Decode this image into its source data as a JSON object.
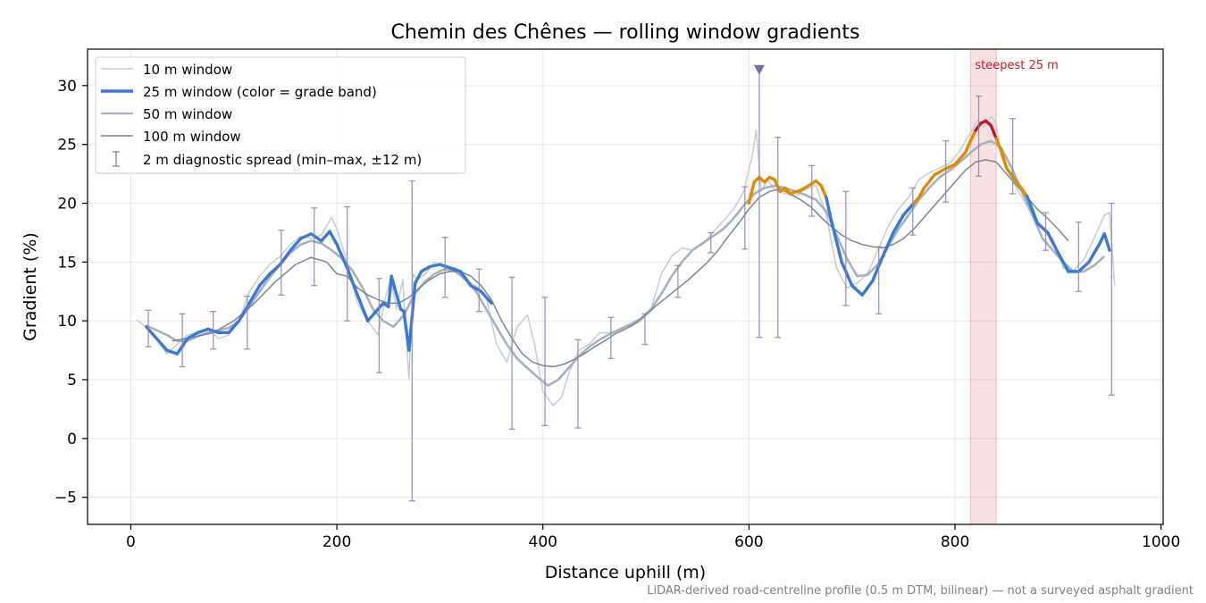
{
  "chart_data": {
    "type": "line",
    "title": "Chemin des Chênes — rolling window gradients",
    "xlabel": "Distance uphill (m)",
    "ylabel": "Gradient (%)",
    "footnote": "LiDAR-derived road-centreline profile (0.5 m DTM, bilinear) — not a surveyed asphalt gradient",
    "xlim": [
      -42,
      1002
    ],
    "ylim": [
      -7.3,
      33.1
    ],
    "xticks": [
      0,
      200,
      400,
      600,
      800,
      1000
    ],
    "yticks": [
      -5,
      0,
      5,
      10,
      15,
      20,
      25,
      30
    ],
    "ytick_labels": [
      "−5",
      "0",
      "5",
      "10",
      "15",
      "20",
      "25",
      "30"
    ],
    "grid": true,
    "legend_position": "top-left",
    "grade_band_colors": {
      "normal": "#3a78d4",
      "steep": "#e08a00",
      "very_steep": "#c0182a"
    },
    "grade_band_thresholds": [
      20,
      26
    ],
    "legend": [
      {
        "label": "10 m window",
        "color": "#c8ced6",
        "style": "thin"
      },
      {
        "label": "25 m window (color = grade band)",
        "color": "#3a78d4",
        "style": "thick"
      },
      {
        "label": "50 m window",
        "color": "#a6b0bf",
        "style": "medium"
      },
      {
        "label": "100 m window",
        "color": "#7e8492",
        "style": "thin"
      },
      {
        "label": "2 m diagnostic spread (min–max, ±12 m)",
        "color": "#8c85a8",
        "style": "errorbar"
      }
    ],
    "series": [
      {
        "name": "10 m window",
        "color": "#c8ced6",
        "x": [
          5,
          15,
          25,
          35,
          45,
          55,
          65,
          75,
          85,
          95,
          105,
          115,
          125,
          135,
          145,
          155,
          165,
          175,
          185,
          195,
          200,
          210,
          220,
          230,
          240,
          247,
          252,
          258,
          264,
          270,
          274,
          278,
          286,
          295,
          305,
          315,
          325,
          335,
          345,
          355,
          365,
          375,
          385,
          392,
          400,
          410,
          418,
          425,
          435,
          445,
          455,
          465,
          475,
          485,
          495,
          505,
          515,
          525,
          535,
          545,
          555,
          565,
          575,
          585,
          595,
          603,
          607,
          612,
          618,
          625,
          635,
          645,
          655,
          665,
          675,
          685,
          695,
          705,
          715,
          725,
          735,
          745,
          755,
          765,
          775,
          785,
          795,
          805,
          815,
          822,
          828,
          835,
          840,
          845,
          855,
          865,
          875,
          885,
          895,
          905,
          915,
          925,
          935,
          945,
          950,
          955
        ],
        "y": [
          10.1,
          9.5,
          8.5,
          7.2,
          8.0,
          8.8,
          9.0,
          9.3,
          8.5,
          8.8,
          10.0,
          12.5,
          13.8,
          14.8,
          15.5,
          16.5,
          17.2,
          17.0,
          17.3,
          18.8,
          17.8,
          15.0,
          11.5,
          10.0,
          8.8,
          12.0,
          13.5,
          11.0,
          13.5,
          5.0,
          14.0,
          13.5,
          14.0,
          15.0,
          14.5,
          14.5,
          13.5,
          13.0,
          12.0,
          8.0,
          6.5,
          9.5,
          10.5,
          8.0,
          4.0,
          2.8,
          3.5,
          5.5,
          7.5,
          8.0,
          9.0,
          9.0,
          9.2,
          9.5,
          10.0,
          11.0,
          14.0,
          15.5,
          16.2,
          16.0,
          16.5,
          17.5,
          18.5,
          19.5,
          21.0,
          24.0,
          26.2,
          21.0,
          22.0,
          21.2,
          20.8,
          20.6,
          21.2,
          21.5,
          19.0,
          14.5,
          12.8,
          13.2,
          14.0,
          16.0,
          18.0,
          19.5,
          20.5,
          22.0,
          22.6,
          23.0,
          23.4,
          24.5,
          26.0,
          27.0,
          26.5,
          27.4,
          26.8,
          24.0,
          22.0,
          20.5,
          19.0,
          17.8,
          17.0,
          14.5,
          14.3,
          15.2,
          17.0,
          19.0,
          19.2,
          13.0
        ]
      },
      {
        "name": "25 m window (color = grade band)",
        "color": "#3a78d4",
        "x": [
          15,
          25,
          35,
          45,
          55,
          65,
          75,
          85,
          95,
          105,
          115,
          125,
          135,
          145,
          155,
          165,
          175,
          185,
          193,
          200,
          210,
          220,
          230,
          240,
          245,
          250,
          253,
          257,
          262,
          265,
          270,
          276,
          282,
          290,
          300,
          310,
          320,
          330,
          340,
          350,
          600,
          605,
          610,
          615,
          620,
          625,
          630,
          635,
          640,
          650,
          660,
          665,
          670,
          675,
          680,
          690,
          700,
          710,
          720,
          730,
          740,
          750,
          760,
          765,
          770,
          780,
          790,
          800,
          810,
          815,
          820,
          825,
          830,
          835,
          840,
          845,
          850,
          860,
          870,
          880,
          890,
          900,
          910,
          920,
          930,
          940,
          945,
          950
        ],
        "y": [
          9.5,
          8.5,
          7.5,
          7.2,
          8.5,
          9.0,
          9.3,
          9.0,
          9.0,
          10.0,
          11.5,
          13.0,
          14.0,
          14.8,
          16.0,
          17.0,
          17.4,
          16.8,
          17.6,
          16.5,
          14.5,
          12.2,
          10.0,
          11.0,
          11.5,
          11.2,
          13.8,
          12.5,
          11.0,
          10.8,
          7.5,
          13.2,
          14.2,
          14.6,
          14.8,
          14.5,
          14.2,
          13.0,
          12.5,
          11.5,
          20.0,
          21.8,
          22.2,
          21.8,
          22.2,
          22.0,
          21.0,
          21.3,
          20.8,
          21.1,
          21.6,
          21.9,
          21.5,
          20.5,
          18.5,
          15.0,
          13.0,
          12.2,
          13.4,
          15.5,
          17.5,
          19.0,
          20.0,
          20.5,
          21.3,
          22.4,
          22.9,
          23.3,
          24.3,
          25.3,
          26.2,
          26.8,
          27.0,
          26.6,
          25.5,
          24.4,
          23.0,
          21.8,
          20.6,
          18.3,
          17.5,
          15.8,
          14.2,
          14.2,
          15.0,
          16.5,
          17.4,
          16.0
        ]
      },
      {
        "name": "50 m window",
        "color": "#a6b0bf",
        "x": [
          15,
          25,
          35,
          45,
          55,
          65,
          75,
          85,
          95,
          105,
          115,
          125,
          135,
          145,
          155,
          165,
          175,
          185,
          195,
          205,
          215,
          225,
          235,
          245,
          255,
          265,
          275,
          285,
          295,
          305,
          315,
          325,
          335,
          345,
          355,
          365,
          375,
          385,
          395,
          405,
          415,
          425,
          435,
          445,
          455,
          465,
          475,
          485,
          495,
          505,
          515,
          525,
          535,
          545,
          555,
          565,
          575,
          585,
          595,
          605,
          615,
          625,
          635,
          645,
          655,
          665,
          675,
          685,
          695,
          705,
          715,
          725,
          735,
          745,
          755,
          765,
          775,
          785,
          795,
          805,
          815,
          825,
          835,
          845,
          855,
          865,
          875,
          885,
          895,
          905,
          915,
          925,
          935,
          945
        ],
        "y": [
          9.6,
          9.2,
          8.8,
          8.3,
          8.3,
          8.7,
          9.0,
          9.2,
          9.4,
          10.0,
          11.2,
          12.5,
          13.7,
          14.8,
          15.8,
          16.5,
          16.8,
          16.6,
          16.0,
          15.3,
          14.3,
          12.8,
          11.0,
          10.0,
          9.5,
          10.5,
          12.2,
          13.3,
          14.0,
          14.4,
          14.2,
          13.5,
          12.5,
          11.0,
          9.5,
          8.0,
          6.8,
          6.0,
          5.2,
          4.5,
          5.0,
          6.0,
          7.0,
          7.8,
          8.4,
          8.9,
          9.3,
          9.7,
          10.2,
          11.0,
          12.3,
          13.8,
          15.0,
          16.0,
          16.6,
          17.2,
          17.8,
          18.7,
          19.8,
          20.8,
          21.3,
          21.5,
          21.3,
          21.0,
          20.7,
          20.3,
          19.3,
          17.3,
          15.3,
          13.8,
          13.9,
          14.8,
          16.3,
          17.8,
          19.0,
          20.3,
          21.3,
          22.2,
          22.8,
          23.5,
          24.3,
          25.0,
          25.3,
          24.7,
          23.0,
          21.0,
          19.0,
          17.0,
          16.0,
          15.0,
          14.2,
          14.2,
          14.7,
          15.5
        ]
      },
      {
        "name": "100 m window",
        "color": "#7e8492",
        "x": [
          40,
          60,
          80,
          100,
          120,
          140,
          160,
          175,
          190,
          200,
          210,
          220,
          230,
          240,
          250,
          260,
          270,
          280,
          290,
          300,
          310,
          320,
          330,
          340,
          350,
          360,
          370,
          380,
          390,
          400,
          410,
          420,
          430,
          440,
          450,
          460,
          470,
          480,
          490,
          500,
          510,
          520,
          530,
          540,
          550,
          560,
          570,
          580,
          590,
          600,
          610,
          620,
          630,
          640,
          650,
          660,
          670,
          680,
          690,
          700,
          710,
          720,
          730,
          740,
          750,
          760,
          770,
          780,
          790,
          800,
          810,
          820,
          830,
          840,
          850,
          860,
          870,
          880,
          890,
          900,
          910
        ],
        "y": [
          8.3,
          8.6,
          9.0,
          10.0,
          11.5,
          13.3,
          14.8,
          15.4,
          15.0,
          14.0,
          13.8,
          12.8,
          12.2,
          11.8,
          11.5,
          11.5,
          12.0,
          12.8,
          13.5,
          14.0,
          14.2,
          14.2,
          13.8,
          13.0,
          11.8,
          10.0,
          8.5,
          7.2,
          6.5,
          6.2,
          6.1,
          6.3,
          6.7,
          7.2,
          7.8,
          8.3,
          8.9,
          9.3,
          9.8,
          10.5,
          11.3,
          12.0,
          12.7,
          13.4,
          14.2,
          15.0,
          16.0,
          17.2,
          18.3,
          19.5,
          20.5,
          21.0,
          21.2,
          20.8,
          20.3,
          19.7,
          18.8,
          18.0,
          17.3,
          16.8,
          16.5,
          16.3,
          16.2,
          16.5,
          17.0,
          17.8,
          18.8,
          19.8,
          20.8,
          21.8,
          22.8,
          23.5,
          23.7,
          23.5,
          22.5,
          21.5,
          20.5,
          19.5,
          18.7,
          17.8,
          16.8
        ]
      }
    ],
    "spread": {
      "name": "2 m diagnostic spread (min–max, ±12 m)",
      "x": [
        17,
        50,
        80,
        113,
        146,
        178,
        210,
        241,
        273,
        305,
        338,
        370,
        402,
        434,
        466,
        499,
        531,
        563,
        596,
        610,
        628,
        661,
        694,
        726,
        759,
        791,
        823,
        856,
        888,
        920,
        952
      ],
      "low": [
        7.8,
        6.1,
        7.6,
        7.6,
        12.2,
        13.0,
        10.0,
        5.6,
        -5.3,
        12.0,
        10.8,
        0.8,
        1.1,
        0.9,
        6.8,
        8.0,
        12.0,
        15.8,
        16.1,
        8.6,
        8.6,
        18.9,
        11.3,
        10.6,
        17.3,
        20.1,
        22.3,
        20.8,
        16.0,
        12.5,
        3.7
      ],
      "high": [
        10.9,
        10.6,
        10.8,
        12.1,
        17.7,
        19.6,
        19.7,
        13.6,
        21.9,
        17.1,
        14.4,
        13.7,
        12.0,
        8.4,
        10.3,
        10.6,
        14.7,
        17.5,
        21.4,
        31.3,
        25.6,
        23.2,
        21.0,
        16.3,
        21.3,
        25.3,
        29.1,
        27.2,
        19.2,
        18.4,
        20.0
      ]
    },
    "marker": {
      "x": 610,
      "y": 31.3,
      "shape": "triangle-down",
      "color": "#7b6ea6"
    },
    "highlight": {
      "x0": 815,
      "x1": 840,
      "label": "steepest 25 m",
      "color": "#c0182a"
    }
  }
}
